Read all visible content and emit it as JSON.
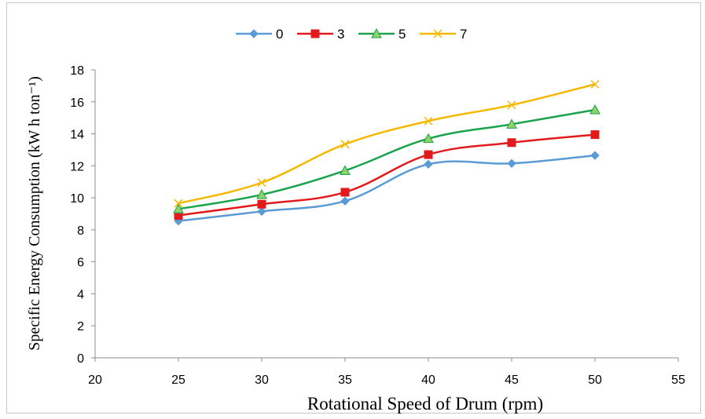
{
  "chart_data": {
    "type": "line",
    "x": [
      25,
      30,
      35,
      40,
      45,
      50
    ],
    "xlim": [
      20,
      55
    ],
    "ylim": [
      0,
      18
    ],
    "x_ticks": [
      20,
      25,
      30,
      35,
      40,
      45,
      50,
      55
    ],
    "y_ticks": [
      0,
      2,
      4,
      6,
      8,
      10,
      12,
      14,
      16,
      18
    ],
    "xlabel": "Rotational Speed of Drum (rpm)",
    "ylabel": "Specific Energy Consumption (kW h ton⁻¹)",
    "grid": false,
    "legend_position": "top",
    "smoothed": true,
    "series": [
      {
        "name": "0",
        "values": [
          8.55,
          9.15,
          9.8,
          12.1,
          12.15,
          12.65
        ],
        "color": "#5b9bd5",
        "marker": "diamond"
      },
      {
        "name": "3",
        "values": [
          8.9,
          9.6,
          10.35,
          12.7,
          13.45,
          13.95
        ],
        "color": "#e31a1c",
        "marker": "square"
      },
      {
        "name": "5",
        "values": [
          9.3,
          10.2,
          11.7,
          13.7,
          14.6,
          15.5
        ],
        "color": "#1aa34a",
        "marker": "triangle"
      },
      {
        "name": "7",
        "values": [
          9.65,
          10.95,
          13.35,
          14.8,
          15.8,
          17.1
        ],
        "color": "#f5b800",
        "marker": "x"
      }
    ]
  }
}
